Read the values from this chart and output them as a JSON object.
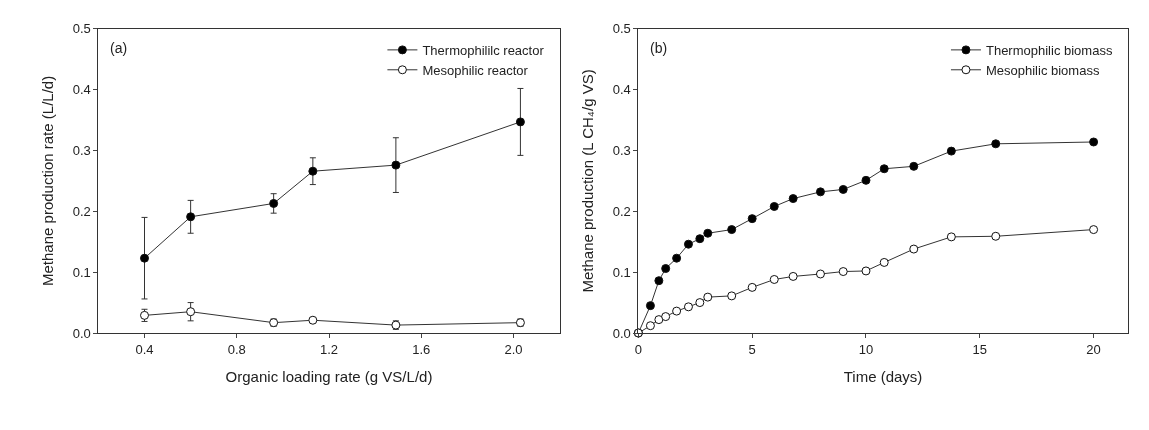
{
  "chart_data": [
    {
      "type": "line",
      "annotations": [
        "(a)"
      ],
      "xlabel": "Organic loading rate (g VS/L/d)",
      "ylabel": "Methane production rate (L/L/d)",
      "x": [
        0.4,
        0.6,
        0.96,
        1.13,
        1.49,
        2.03
      ],
      "series": [
        {
          "name": "Thermophililc reactor",
          "color": "#000000",
          "values": [
            0.123,
            0.191,
            0.213,
            0.266,
            0.276,
            0.347
          ],
          "errors": [
            0.067,
            0.027,
            0.016,
            0.022,
            0.045,
            0.055
          ]
        },
        {
          "name": "Mesophilic reactor",
          "color": "#ffffff",
          "values": [
            0.029,
            0.035,
            0.017,
            0.021,
            0.013,
            0.017
          ],
          "errors": [
            0.01,
            0.015,
            0.006,
            0.004,
            0.007,
            0.006
          ]
        }
      ],
      "xlim": [
        0.2,
        2.2
      ],
      "xticks": [
        {
          "value": 0.4,
          "label": "0.4"
        },
        {
          "value": 0.8,
          "label": "0.8"
        },
        {
          "value": 1.2,
          "label": "1.2"
        },
        {
          "value": 1.6,
          "label": "1.6"
        },
        {
          "value": 2.0,
          "label": "2.0"
        }
      ],
      "ylim": [
        0,
        0.5
      ],
      "yticks": [
        {
          "value": 0,
          "label": "0.0"
        },
        0.1,
        0.2,
        0.3,
        0.4,
        0.5
      ],
      "legend": "top right",
      "marker": "circle",
      "line_style": "solid"
    },
    {
      "type": "line",
      "annotations": [
        "(b)"
      ],
      "xlabel": "Time (days)",
      "ylabel": "Methane production (L CH₄/g VS)",
      "x": [
        0,
        0.53,
        0.9,
        1.2,
        1.68,
        2.2,
        2.7,
        3.05,
        4.1,
        5.0,
        5.97,
        6.8,
        8.0,
        9.0,
        10.0,
        10.8,
        12.1,
        13.75,
        15.7,
        20
      ],
      "series": [
        {
          "name": "Thermophilic biomass",
          "color": "#000000",
          "values": [
            0,
            0.045,
            0.086,
            0.106,
            0.123,
            0.146,
            0.155,
            0.164,
            0.17,
            0.188,
            0.208,
            0.221,
            0.232,
            0.236,
            0.251,
            0.27,
            0.274,
            0.299,
            0.311,
            0.314
          ]
        },
        {
          "name": "Mesophilic biomass",
          "color": "#ffffff",
          "values": [
            0,
            0.012,
            0.022,
            0.027,
            0.036,
            0.043,
            0.05,
            0.059,
            0.061,
            0.075,
            0.088,
            0.093,
            0.097,
            0.101,
            0.102,
            0.116,
            0.138,
            0.158,
            0.159,
            0.17
          ]
        }
      ],
      "xlim": [
        0,
        21.5
      ],
      "xticks": [
        0,
        5,
        10,
        15,
        20
      ],
      "ylim": [
        0,
        0.5
      ],
      "yticks": [
        {
          "value": 0,
          "label": "0.0"
        },
        0.1,
        0.2,
        0.3,
        0.4,
        0.5
      ],
      "legend": "top right",
      "marker": "circle",
      "line_style": "solid"
    }
  ]
}
